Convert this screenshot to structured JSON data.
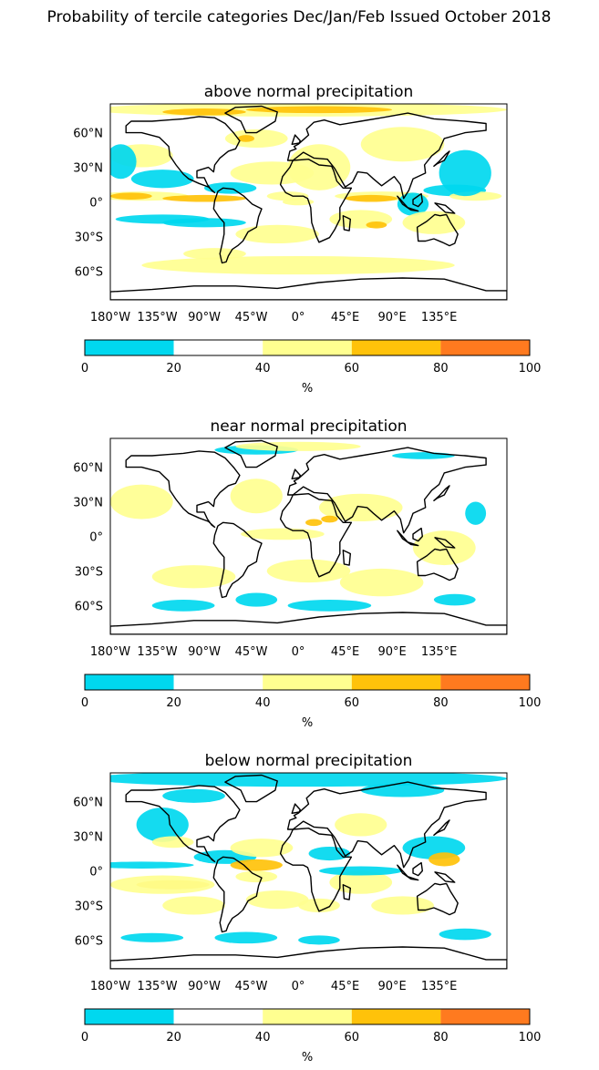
{
  "title": "Probability of tercile categories Dec/Jan/Feb Issued October 2018",
  "colors": {
    "ocean_bg": "#ffffff",
    "coast": "#000000",
    "bins": [
      "#00d8ef",
      "#ffffff",
      "#ffff90",
      "#ffc20a",
      "#ff7a1f"
    ]
  },
  "chart_data": [
    {
      "type": "heatmap",
      "title": "above normal precipitation",
      "x_ticks": [
        "180°W",
        "135°W",
        "90°W",
        "45°W",
        "0°",
        "45°E",
        "90°E",
        "135°E"
      ],
      "y_ticks": [
        "60°N",
        "30°N",
        "0°",
        "30°S",
        "60°S"
      ],
      "colorbar": {
        "label": "%",
        "ticks": [
          "0",
          "20",
          "40",
          "60",
          "80",
          "100"
        ],
        "boundaries": [
          0,
          20,
          40,
          60,
          80,
          100
        ]
      }
    },
    {
      "type": "heatmap",
      "title": "near normal precipitation",
      "x_ticks": [
        "180°W",
        "135°W",
        "90°W",
        "45°W",
        "0°",
        "45°E",
        "90°E",
        "135°E"
      ],
      "y_ticks": [
        "60°N",
        "30°N",
        "0°",
        "30°S",
        "60°S"
      ],
      "colorbar": {
        "label": "%",
        "ticks": [
          "0",
          "20",
          "40",
          "60",
          "80",
          "100"
        ],
        "boundaries": [
          0,
          20,
          40,
          60,
          80,
          100
        ]
      }
    },
    {
      "type": "heatmap",
      "title": "below normal precipitation",
      "x_ticks": [
        "180°W",
        "135°W",
        "90°W",
        "45°W",
        "0°",
        "45°E",
        "90°E",
        "135°E"
      ],
      "y_ticks": [
        "60°N",
        "30°N",
        "0°",
        "30°S",
        "60°S"
      ],
      "colorbar": {
        "label": "%",
        "ticks": [
          "0",
          "20",
          "40",
          "60",
          "80",
          "100"
        ],
        "boundaries": [
          0,
          20,
          40,
          60,
          80,
          100
        ]
      }
    }
  ]
}
